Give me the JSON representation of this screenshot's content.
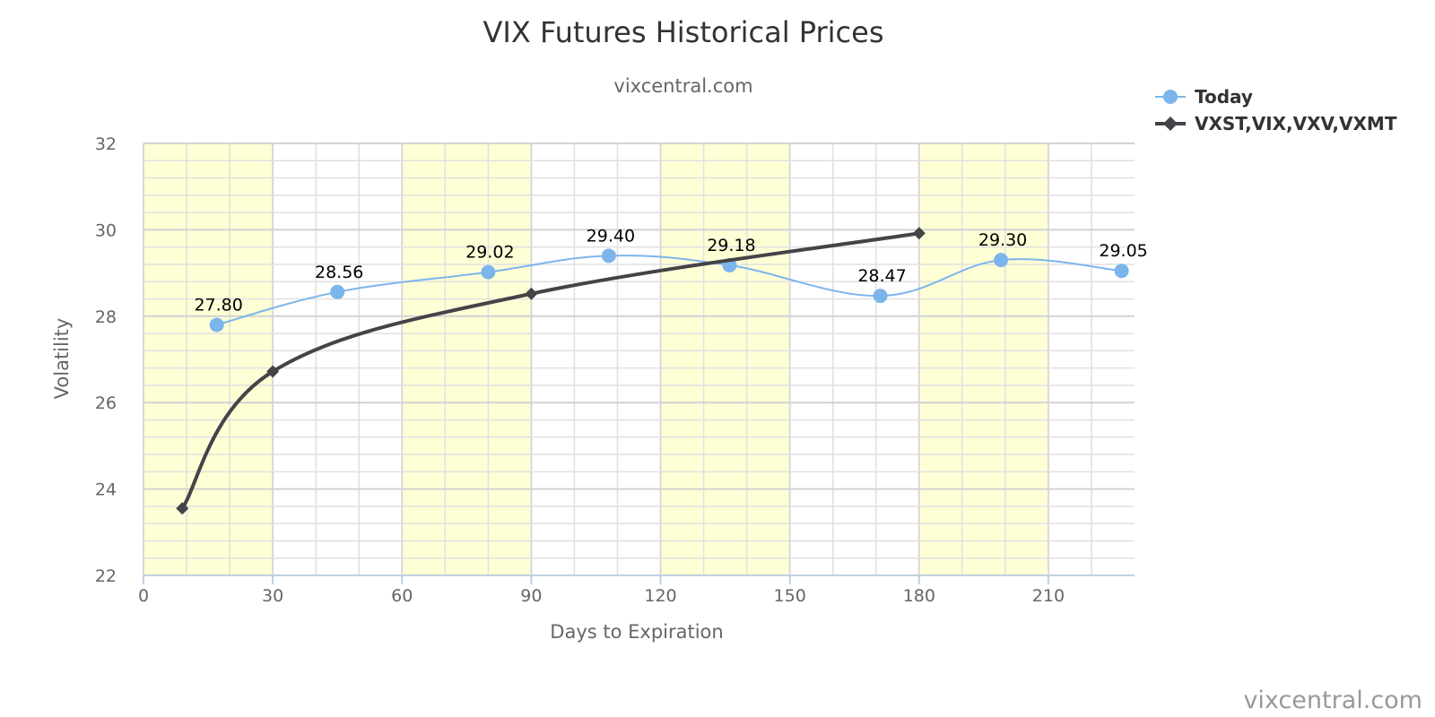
{
  "chart_data": {
    "type": "line",
    "title": "VIX Futures Historical Prices",
    "subtitle": "vixcentral.com",
    "xlabel": "Days to Expiration",
    "ylabel": "Volatility",
    "xlim": [
      0,
      230
    ],
    "ylim": [
      22,
      32
    ],
    "x_ticks": [
      0,
      30,
      60,
      90,
      120,
      150,
      180,
      210
    ],
    "y_ticks": [
      22,
      24,
      26,
      28,
      30,
      32
    ],
    "x_bands": [
      [
        0,
        30
      ],
      [
        60,
        90
      ],
      [
        120,
        150
      ],
      [
        180,
        210
      ]
    ],
    "grid": true,
    "legend_position": "top-right",
    "series": [
      {
        "name": "Today",
        "marker": "circle",
        "color": "#7cb5ec",
        "smooth": true,
        "show_data_labels": true,
        "points": [
          {
            "x": 17,
            "y": 27.8,
            "label": "27.80"
          },
          {
            "x": 45,
            "y": 28.56,
            "label": "28.56"
          },
          {
            "x": 80,
            "y": 29.02,
            "label": "29.02"
          },
          {
            "x": 108,
            "y": 29.4,
            "label": "29.40"
          },
          {
            "x": 136,
            "y": 29.18,
            "label": "29.18"
          },
          {
            "x": 171,
            "y": 28.47,
            "label": "28.47"
          },
          {
            "x": 199,
            "y": 29.3,
            "label": "29.30"
          },
          {
            "x": 227,
            "y": 29.05,
            "label": "29.05"
          }
        ]
      },
      {
        "name": "VXST,VIX,VXV,VXMT",
        "marker": "diamond",
        "color": "#434348",
        "smooth": true,
        "show_data_labels": false,
        "points": [
          {
            "x": 9,
            "y": 23.55
          },
          {
            "x": 30,
            "y": 26.72
          },
          {
            "x": 90,
            "y": 28.52
          },
          {
            "x": 180,
            "y": 29.92
          }
        ]
      }
    ],
    "credit": "vixcentral.com"
  }
}
